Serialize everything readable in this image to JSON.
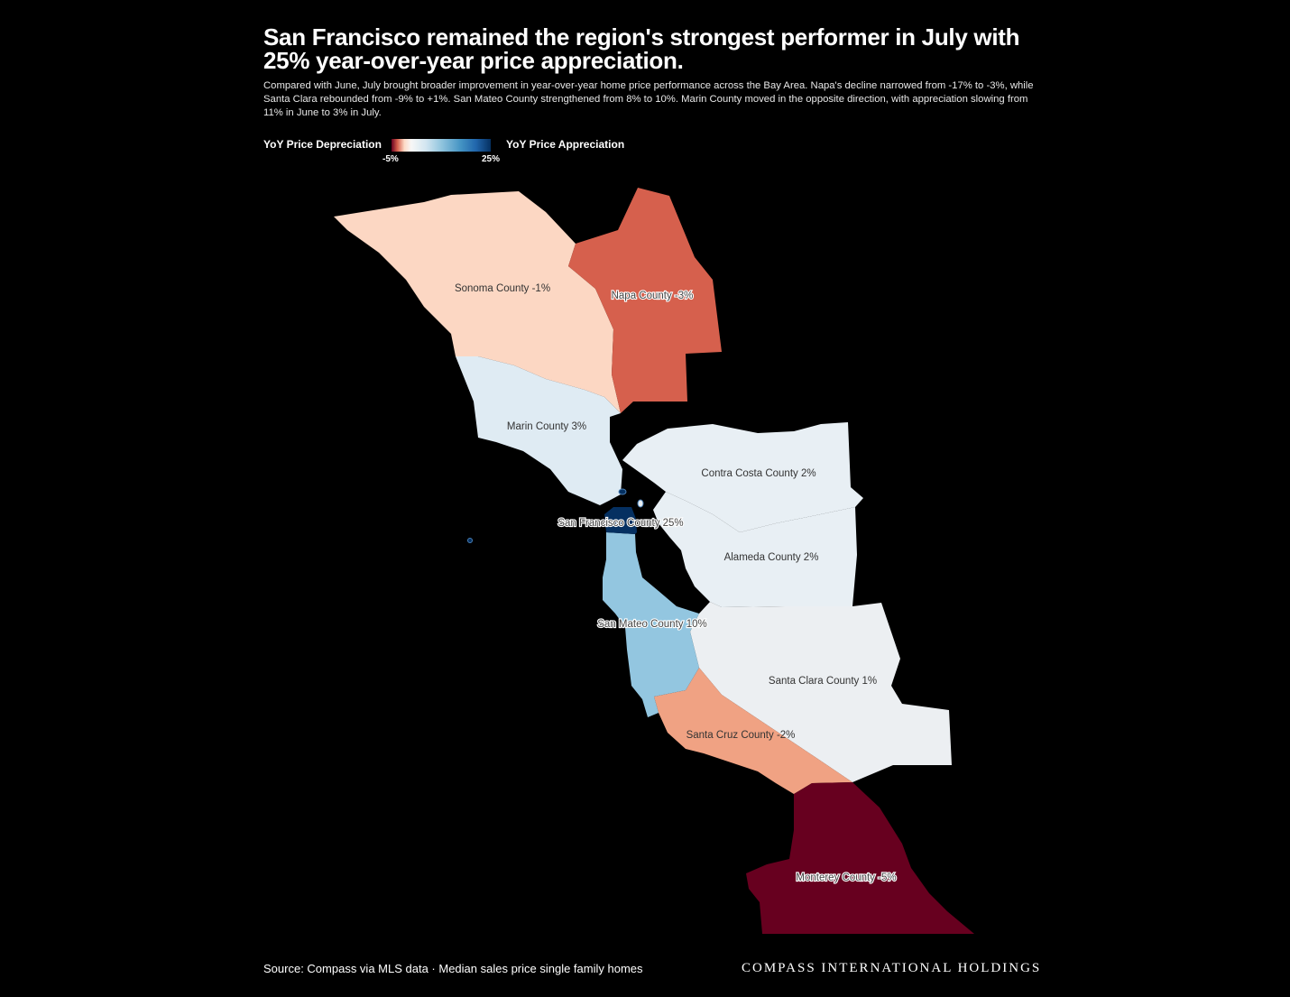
{
  "header": {
    "title": "San Francisco remained the region's strongest performer in July with 25% year-over-year price appreciation.",
    "subtitle": "Compared with June, July brought broader improvement in year-over-year home price performance across the Bay Area. Napa's decline narrowed from -17% to -3%, while Santa Clara rebounded from -9% to +1%. San Mateo County strengthened from 8% to 10%. Marin County moved in the opposite direction, with appreciation slowing from 11% in June to 3% in July."
  },
  "legend": {
    "left_label": "YoY Price Depreciation",
    "right_label": "YoY Price Appreciation",
    "min_label": "-5%",
    "max_label": "25%",
    "min_value": -5,
    "max_value": 25
  },
  "counties": [
    {
      "name": "Sonoma County",
      "value": -1,
      "label": "Sonoma County -1%",
      "color": "#fcd7c3"
    },
    {
      "name": "Napa County",
      "value": -3,
      "label": "Napa County -3%",
      "color": "#d6604d"
    },
    {
      "name": "Marin County",
      "value": 3,
      "label": "Marin County 3%",
      "color": "#dfebf3"
    },
    {
      "name": "Contra Costa County",
      "value": 2,
      "label": "Contra Costa County 2%",
      "color": "#e8eff4"
    },
    {
      "name": "San Francisco County",
      "value": 25,
      "label": "San Francisco County 25%",
      "color": "#053061"
    },
    {
      "name": "Alameda County",
      "value": 2,
      "label": "Alameda County 2%",
      "color": "#e8eff4"
    },
    {
      "name": "San Mateo County",
      "value": 10,
      "label": "San Mateo County 10%",
      "color": "#93c6e0"
    },
    {
      "name": "Santa Clara County",
      "value": 1,
      "label": "Santa Clara County 1%",
      "color": "#eceff2"
    },
    {
      "name": "Santa Cruz County",
      "value": -2,
      "label": "Santa Cruz County -2%",
      "color": "#f0a283"
    },
    {
      "name": "Monterey County",
      "value": -5,
      "label": "Monterey County -5%",
      "color": "#67001f"
    }
  ],
  "footer": {
    "source": "Source: Compass via MLS data · Median sales price single family homes",
    "brand": "COMPASS INTERNATIONAL HOLDINGS"
  }
}
